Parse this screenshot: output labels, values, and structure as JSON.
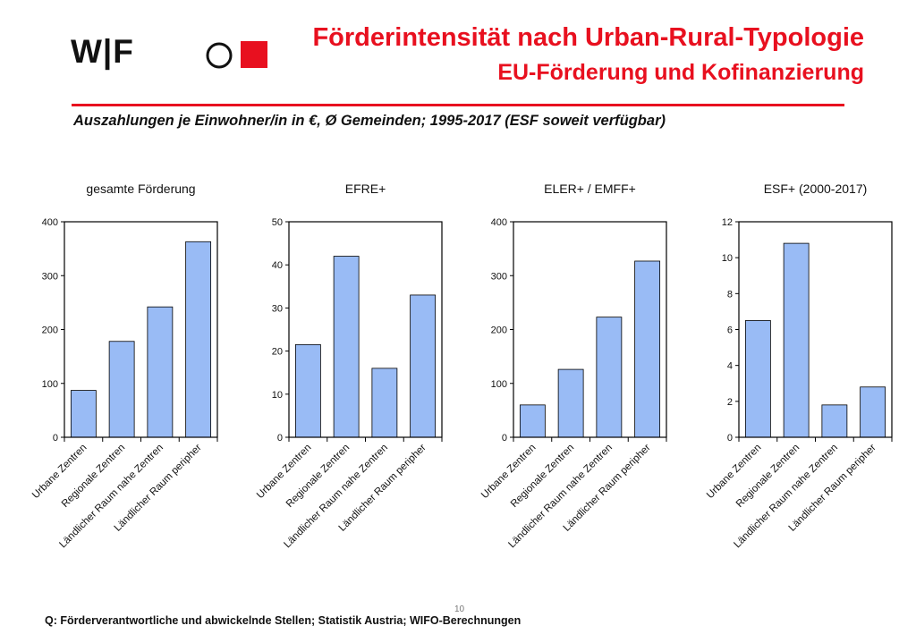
{
  "header": {
    "logo_text": "W|F",
    "title": "Förderintensität nach Urban-Rural-Typologie",
    "subtitle": "EU-Förderung und Kofinanzierung"
  },
  "chart_subtitle": "Auszahlungen je Einwohner/in in €, Ø Gemeinden; 1995-2017 (ESF soweit verfügbar)",
  "page_number": "10",
  "footer": {
    "source": "Q: Förderverantwortliche und abwickelnde Stellen; Statistik Austria; WIFO-Berechnungen"
  },
  "colors": {
    "accent": "#e8101f",
    "bar_fill": "#99bbf5",
    "bar_stroke": "#000000"
  },
  "chart_data": [
    {
      "type": "bar",
      "title": "gesamte Förderung",
      "categories": [
        "Urbane Zentren",
        "Regionale Zentren",
        "Ländlicher Raum nahe Zentren",
        "Ländlicher Raum peripher"
      ],
      "values": [
        87,
        178,
        242,
        363
      ],
      "ylim": [
        0,
        400
      ],
      "yticks": [
        0,
        100,
        200,
        300,
        400
      ],
      "xlabel": "",
      "ylabel": ""
    },
    {
      "type": "bar",
      "title": "EFRE+",
      "categories": [
        "Urbane Zentren",
        "Regionale Zentren",
        "Ländlicher Raum nahe Zentren",
        "Ländlicher Raum peripher"
      ],
      "values": [
        21.5,
        42,
        16,
        33
      ],
      "ylim": [
        0,
        50
      ],
      "yticks": [
        0,
        10,
        20,
        30,
        40,
        50
      ],
      "xlabel": "",
      "ylabel": ""
    },
    {
      "type": "bar",
      "title": "ELER+ / EMFF+",
      "categories": [
        "Urbane Zentren",
        "Regionale Zentren",
        "Ländlicher Raum nahe Zentren",
        "Ländlicher Raum peripher"
      ],
      "values": [
        60,
        126,
        223,
        327
      ],
      "ylim": [
        0,
        400
      ],
      "yticks": [
        0,
        100,
        200,
        300,
        400
      ],
      "xlabel": "",
      "ylabel": ""
    },
    {
      "type": "bar",
      "title": "ESF+ (2000-2017)",
      "categories": [
        "Urbane Zentren",
        "Regionale Zentren",
        "Ländlicher Raum nahe Zentren",
        "Ländlicher Raum peripher"
      ],
      "values": [
        6.5,
        10.8,
        1.8,
        2.8
      ],
      "ylim": [
        0,
        12
      ],
      "yticks": [
        0,
        2,
        4,
        6,
        8,
        10,
        12
      ],
      "xlabel": "",
      "ylabel": ""
    }
  ]
}
